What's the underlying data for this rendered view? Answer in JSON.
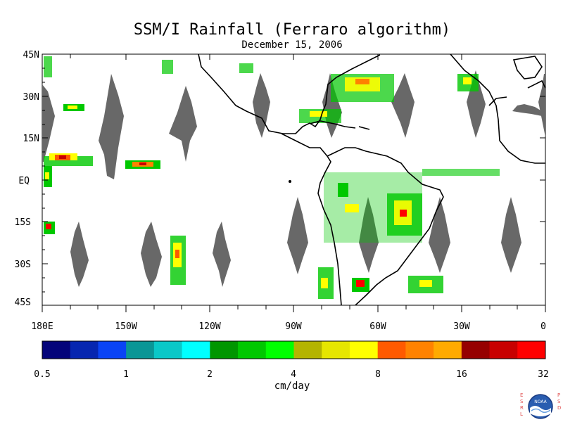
{
  "title": "SSM/I Rainfall (Ferraro algorithm)",
  "date": "December 15, 2006",
  "units": "cm/day",
  "lat_labels": [
    "45N",
    "30N",
    "15N",
    "EQ",
    "15S",
    "30S",
    "45S"
  ],
  "lon_labels": [
    "180E",
    "150W",
    "120W",
    "90W",
    "60W",
    "30W",
    "0"
  ],
  "colorbar": {
    "colors": [
      "#04047a",
      "#0626b0",
      "#0a44f5",
      "#0a9696",
      "#0ac8c8",
      "#00ffff",
      "#009600",
      "#00c800",
      "#00ff00",
      "#b4b400",
      "#e6e600",
      "#ffff00",
      "#ff5a00",
      "#ff8200",
      "#ffaa00",
      "#960000",
      "#c80000",
      "#ff0000"
    ],
    "tick_labels": [
      "0.5",
      "1",
      "2",
      "4",
      "8",
      "16",
      "32"
    ]
  },
  "logo": {
    "left_letters": "ESRL",
    "right_letters": "PSD",
    "badge": "NOAA"
  }
}
